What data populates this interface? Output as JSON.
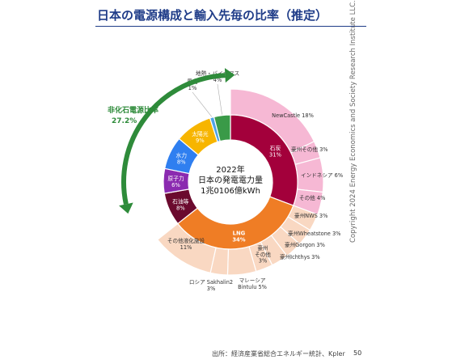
{
  "title": "日本の電源構成と輸入先毎の比率（推定）",
  "copyright": "Copyright 2024 Energy Economics and Society Research Institute LLC.",
  "source": "出所：経済産業省総合エネルギー統計、Kpler",
  "page_number": "50",
  "chart_data": {
    "type": "pie",
    "center_label": [
      "2022年",
      "日本の発電電力量",
      "1兆0106億kWh"
    ],
    "annotation": {
      "label": "非化石電源比率",
      "value": "27.2%"
    },
    "inner": [
      {
        "label": "石炭",
        "value": 31,
        "text": "31%",
        "color": "#a3003b"
      },
      {
        "label": "LNG",
        "value": 34,
        "text": "34%",
        "color": "#ef7d25"
      },
      {
        "label": "石油等",
        "value": 8,
        "text": "8%",
        "color": "#6b0a2e"
      },
      {
        "label": "原子力",
        "value": 6,
        "text": "6%",
        "color": "#8b2ab0"
      },
      {
        "label": "水力",
        "value": 8,
        "text": "8%",
        "color": "#2f7ff0"
      },
      {
        "label": "太陽光",
        "value": 9,
        "text": "9%",
        "color": "#f7b500"
      },
      {
        "label": "風力",
        "value": 1,
        "text": "1%",
        "color": "#4fa3e6"
      },
      {
        "label": "地熱・バイオマス",
        "value": 4,
        "text": "4%",
        "color": "#3a9a48"
      }
    ],
    "outer": [
      {
        "label": "NewCastle",
        "value": 18,
        "text": "NewCastle 18%",
        "color": "#f6b8d4"
      },
      {
        "label": "豪州その他",
        "value": 3,
        "text": "豪州その他 3%",
        "color": "#f6b8d4"
      },
      {
        "label": "インドネシア",
        "value": 6,
        "text": "インドネシア 6%",
        "color": "#f6b8d4"
      },
      {
        "label": "その他",
        "value": 4,
        "text": "その他 4%",
        "color": "#f6b8d4"
      },
      {
        "label": "豪州NWS",
        "value": 3,
        "text": "豪州NWS 3%",
        "color": "#f9d8c2"
      },
      {
        "label": "豪州Wheatstone",
        "value": 3,
        "text": "豪州Wheatstone 3%",
        "color": "#f9d8c2"
      },
      {
        "label": "豪州Gorgon",
        "value": 3,
        "text": "豪州Gorgon 3%",
        "color": "#f9d8c2"
      },
      {
        "label": "豪州Ichthys",
        "value": 3,
        "text": "豪州Ichthys 3%",
        "color": "#f9d8c2"
      },
      {
        "label": "豪州その他",
        "value": 3,
        "text": "豪州\nその他\n3%",
        "color": "#f9d8c2"
      },
      {
        "label": "マレーシアBintulu",
        "value": 5,
        "text": "マレーシア\nBintulu 5%",
        "color": "#f9d8c2"
      },
      {
        "label": "ロシアSakhalin2",
        "value": 3,
        "text": "ロシア Sakhalin2\n3%",
        "color": "#f9d8c2"
      },
      {
        "label": "その他液化施設",
        "value": 11,
        "text": "その他液化施設\n11%",
        "color": "#f9d8c2"
      }
    ]
  }
}
